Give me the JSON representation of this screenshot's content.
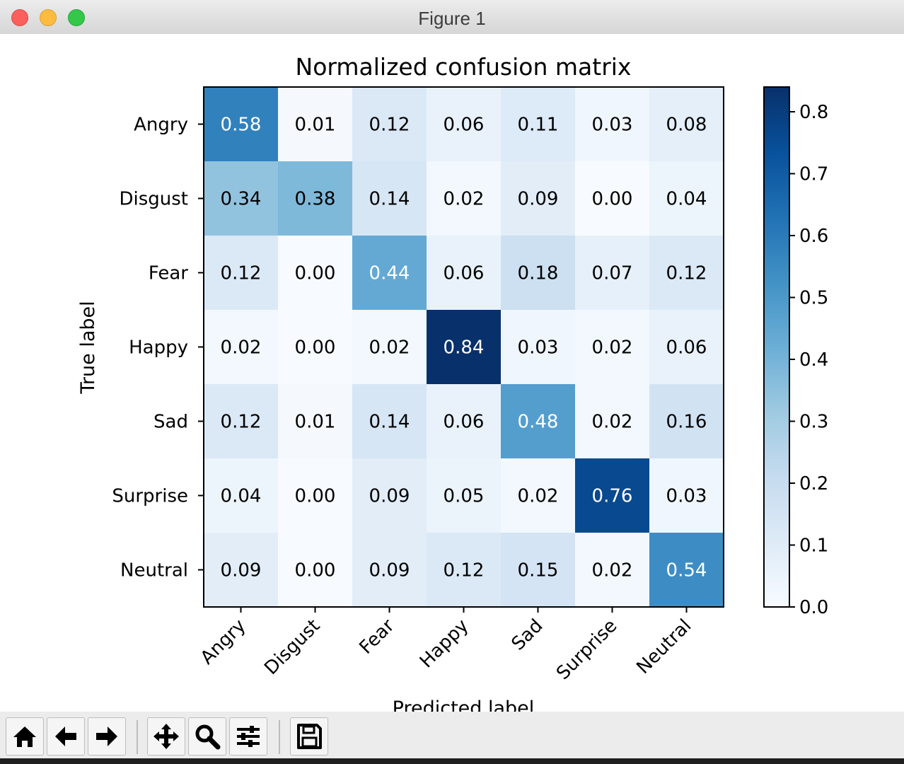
{
  "window": {
    "title": "Figure 1"
  },
  "chart_data": {
    "type": "heatmap",
    "title": "Normalized confusion matrix",
    "xlabel": "Predicted label",
    "ylabel": "True label",
    "rows": [
      "Angry",
      "Disgust",
      "Fear",
      "Happy",
      "Sad",
      "Surprise",
      "Neutral"
    ],
    "columns": [
      "Angry",
      "Disgust",
      "Fear",
      "Happy",
      "Sad",
      "Surprise",
      "Neutral"
    ],
    "values": [
      [
        0.58,
        0.01,
        0.12,
        0.06,
        0.11,
        0.03,
        0.08
      ],
      [
        0.34,
        0.38,
        0.14,
        0.02,
        0.09,
        0.0,
        0.04
      ],
      [
        0.12,
        0.0,
        0.44,
        0.06,
        0.18,
        0.07,
        0.12
      ],
      [
        0.02,
        0.0,
        0.02,
        0.84,
        0.03,
        0.02,
        0.06
      ],
      [
        0.12,
        0.01,
        0.14,
        0.06,
        0.48,
        0.02,
        0.16
      ],
      [
        0.04,
        0.0,
        0.09,
        0.05,
        0.02,
        0.76,
        0.03
      ],
      [
        0.09,
        0.0,
        0.09,
        0.12,
        0.15,
        0.02,
        0.54
      ]
    ],
    "colormap": "Blues",
    "colorbar": {
      "range": [
        0.0,
        0.84
      ],
      "ticks": [
        0.0,
        0.1,
        0.2,
        0.3,
        0.4,
        0.5,
        0.6,
        0.7,
        0.8
      ],
      "tick_labels": [
        "0.0",
        "0.1",
        "0.2",
        "0.3",
        "0.4",
        "0.5",
        "0.6",
        "0.7",
        "0.8"
      ]
    },
    "text_color_threshold": 0.42,
    "text_colors": {
      "light": "#ffffff",
      "dark": "#000000"
    }
  },
  "toolbar": {
    "buttons": [
      {
        "name": "home-button",
        "icon": "home-icon"
      },
      {
        "name": "back-button",
        "icon": "arrow-left-icon"
      },
      {
        "name": "forward-button",
        "icon": "arrow-right-icon"
      },
      {
        "name": "pan-button",
        "icon": "move-icon"
      },
      {
        "name": "zoom-button",
        "icon": "magnifier-icon"
      },
      {
        "name": "configure-subplots-button",
        "icon": "sliders-icon"
      },
      {
        "name": "save-button",
        "icon": "floppy-disk-icon"
      }
    ]
  }
}
